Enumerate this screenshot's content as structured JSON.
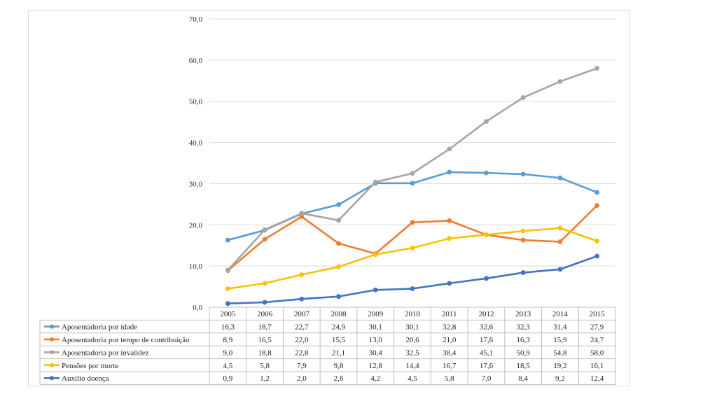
{
  "chart_data": {
    "type": "line",
    "title": "",
    "xlabel": "",
    "ylabel": "",
    "ylim": [
      0,
      70
    ],
    "yticks": [
      "0,0",
      "10,0",
      "20,0",
      "30,0",
      "40,0",
      "50,0",
      "60,0",
      "70,0"
    ],
    "ytick_values": [
      0,
      10,
      20,
      30,
      40,
      50,
      60,
      70
    ],
    "categories": [
      "2005",
      "2006",
      "2007",
      "2008",
      "2009",
      "2010",
      "2011",
      "2012",
      "2013",
      "2014",
      "2015"
    ],
    "legend_position": "data-table-below",
    "series": [
      {
        "name": "Aposentadoria por idade",
        "color": "#5b9bd5",
        "values": [
          16.3,
          18.7,
          22.7,
          24.9,
          30.1,
          30.1,
          32.8,
          32.6,
          32.3,
          31.4,
          27.9
        ],
        "labels": [
          "16,3",
          "18,7",
          "22,7",
          "24,9",
          "30,1",
          "30,1",
          "32,8",
          "32,6",
          "32,3",
          "31,4",
          "27,9"
        ]
      },
      {
        "name": "Aposentadoria por tempo de contribuição",
        "color": "#ed7d31",
        "values": [
          8.9,
          16.5,
          22.0,
          15.5,
          13.0,
          20.6,
          21.0,
          17.6,
          16.3,
          15.9,
          24.7
        ],
        "labels": [
          "8,9",
          "16,5",
          "22,0",
          "15,5",
          "13,0",
          "20,6",
          "21,0",
          "17,6",
          "16,3",
          "15,9",
          "24,7"
        ]
      },
      {
        "name": "Aposentadoria por invalidez",
        "color": "#a5a5a5",
        "values": [
          9.0,
          18.8,
          22.8,
          21.1,
          30.4,
          32.5,
          38.4,
          45.1,
          50.9,
          54.8,
          58.0
        ],
        "labels": [
          "9,0",
          "18,8",
          "22,8",
          "21,1",
          "30,4",
          "32,5",
          "38,4",
          "45,1",
          "50,9",
          "54,8",
          "58,0"
        ]
      },
      {
        "name": "Pensões por morte",
        "color": "#ffc000",
        "values": [
          4.5,
          5.8,
          7.9,
          9.8,
          12.8,
          14.4,
          16.7,
          17.6,
          18.5,
          19.2,
          16.1
        ],
        "labels": [
          "4,5",
          "5,8",
          "7,9",
          "9,8",
          "12,8",
          "14,4",
          "16,7",
          "17,6",
          "18,5",
          "19,2",
          "16,1"
        ]
      },
      {
        "name": "Auxílio doença",
        "color": "#4472c4",
        "values": [
          0.9,
          1.2,
          2.0,
          2.6,
          4.2,
          4.5,
          5.8,
          7.0,
          8.4,
          9.2,
          12.4
        ],
        "labels": [
          "0,9",
          "1,2",
          "2,0",
          "2,6",
          "4,2",
          "4,5",
          "5,8",
          "7,0",
          "8,4",
          "9,2",
          "12,4"
        ]
      }
    ]
  }
}
